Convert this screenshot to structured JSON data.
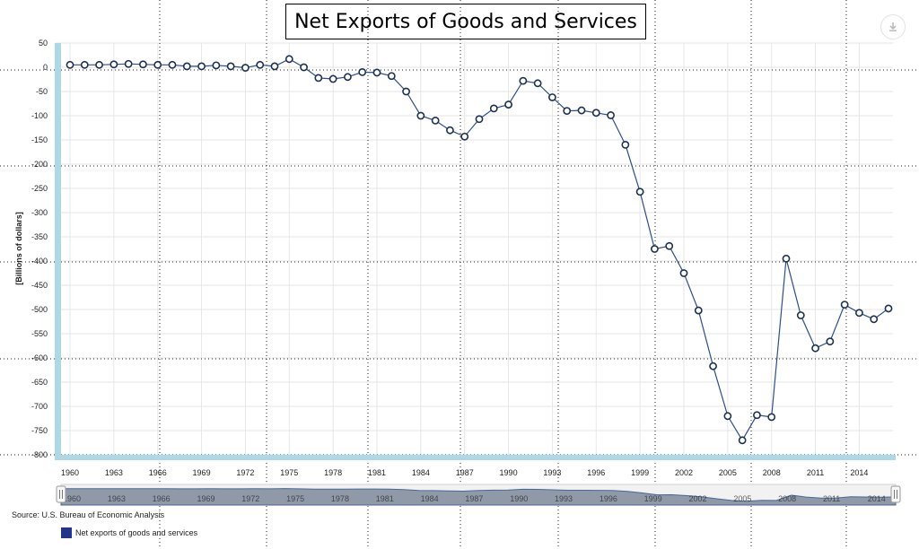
{
  "title": "Net Exports of Goods and Services",
  "source": "Source: U.S. Bureau of Economic Analysis",
  "colors": {
    "line": "#2d4f8a",
    "marker_fill": "#ffffff",
    "marker_stroke": "#1c3050",
    "axis_band": "#add8e6",
    "grid": "#e6e6e6",
    "navigator_fill": "#7f8a9c"
  },
  "icons": {
    "download": "download-icon",
    "handle": "navigator-handle-icon"
  },
  "chart_data": {
    "type": "line",
    "title": "Net Exports of Goods and Services",
    "xlabel": "",
    "ylabel": "[Billions of dollars]",
    "ylim": [
      -800,
      50
    ],
    "yticks": [
      50,
      0,
      -50,
      -100,
      -150,
      -200,
      -250,
      -300,
      -350,
      -400,
      -450,
      -500,
      -550,
      -600,
      -650,
      -700,
      -750,
      -800
    ],
    "xticks": [
      1960,
      1963,
      1966,
      1969,
      1972,
      1975,
      1978,
      1981,
      1984,
      1987,
      1990,
      1993,
      1996,
      1999,
      2002,
      2005,
      2008,
      2011,
      2014
    ],
    "grid": true,
    "legend": "bottom-left",
    "series": [
      {
        "name": "Net exports of goods and services",
        "x": [
          1960,
          1961,
          1962,
          1963,
          1964,
          1965,
          1966,
          1967,
          1968,
          1969,
          1970,
          1971,
          1972,
          1973,
          1974,
          1975,
          1976,
          1977,
          1978,
          1979,
          1980,
          1981,
          1982,
          1983,
          1984,
          1985,
          1986,
          1987,
          1988,
          1989,
          1990,
          1991,
          1992,
          1993,
          1994,
          1995,
          1996,
          1997,
          1998,
          1999,
          2000,
          2001,
          2002,
          2003,
          2004,
          2005,
          2006,
          2007,
          2008,
          2009,
          2010,
          2011,
          2012,
          2013,
          2014,
          2015,
          2016
        ],
        "values": [
          5,
          5,
          5,
          6,
          7,
          6,
          5,
          5,
          2,
          2,
          4,
          2,
          -1,
          5,
          2,
          17,
          0,
          -22,
          -24,
          -20,
          -10,
          -11,
          -18,
          -50,
          -100,
          -110,
          -130,
          -143,
          -107,
          -85,
          -77,
          -28,
          -33,
          -62,
          -90,
          -89,
          -94,
          -99,
          -160,
          -257,
          -375,
          -369,
          -425,
          -502,
          -617,
          -720,
          -770,
          -718,
          -722,
          -395,
          -512,
          -580,
          -566,
          -490,
          -507,
          -520,
          -498
        ]
      }
    ],
    "navigator": {
      "labels": [
        "1960",
        "1963",
        "1966",
        "1969",
        "1972",
        "1975",
        "1978",
        "1981",
        "1984",
        "1987",
        "1990",
        "1993",
        "1996",
        "1999",
        "2002",
        "2005",
        "2008",
        "2011",
        "2014"
      ]
    }
  }
}
